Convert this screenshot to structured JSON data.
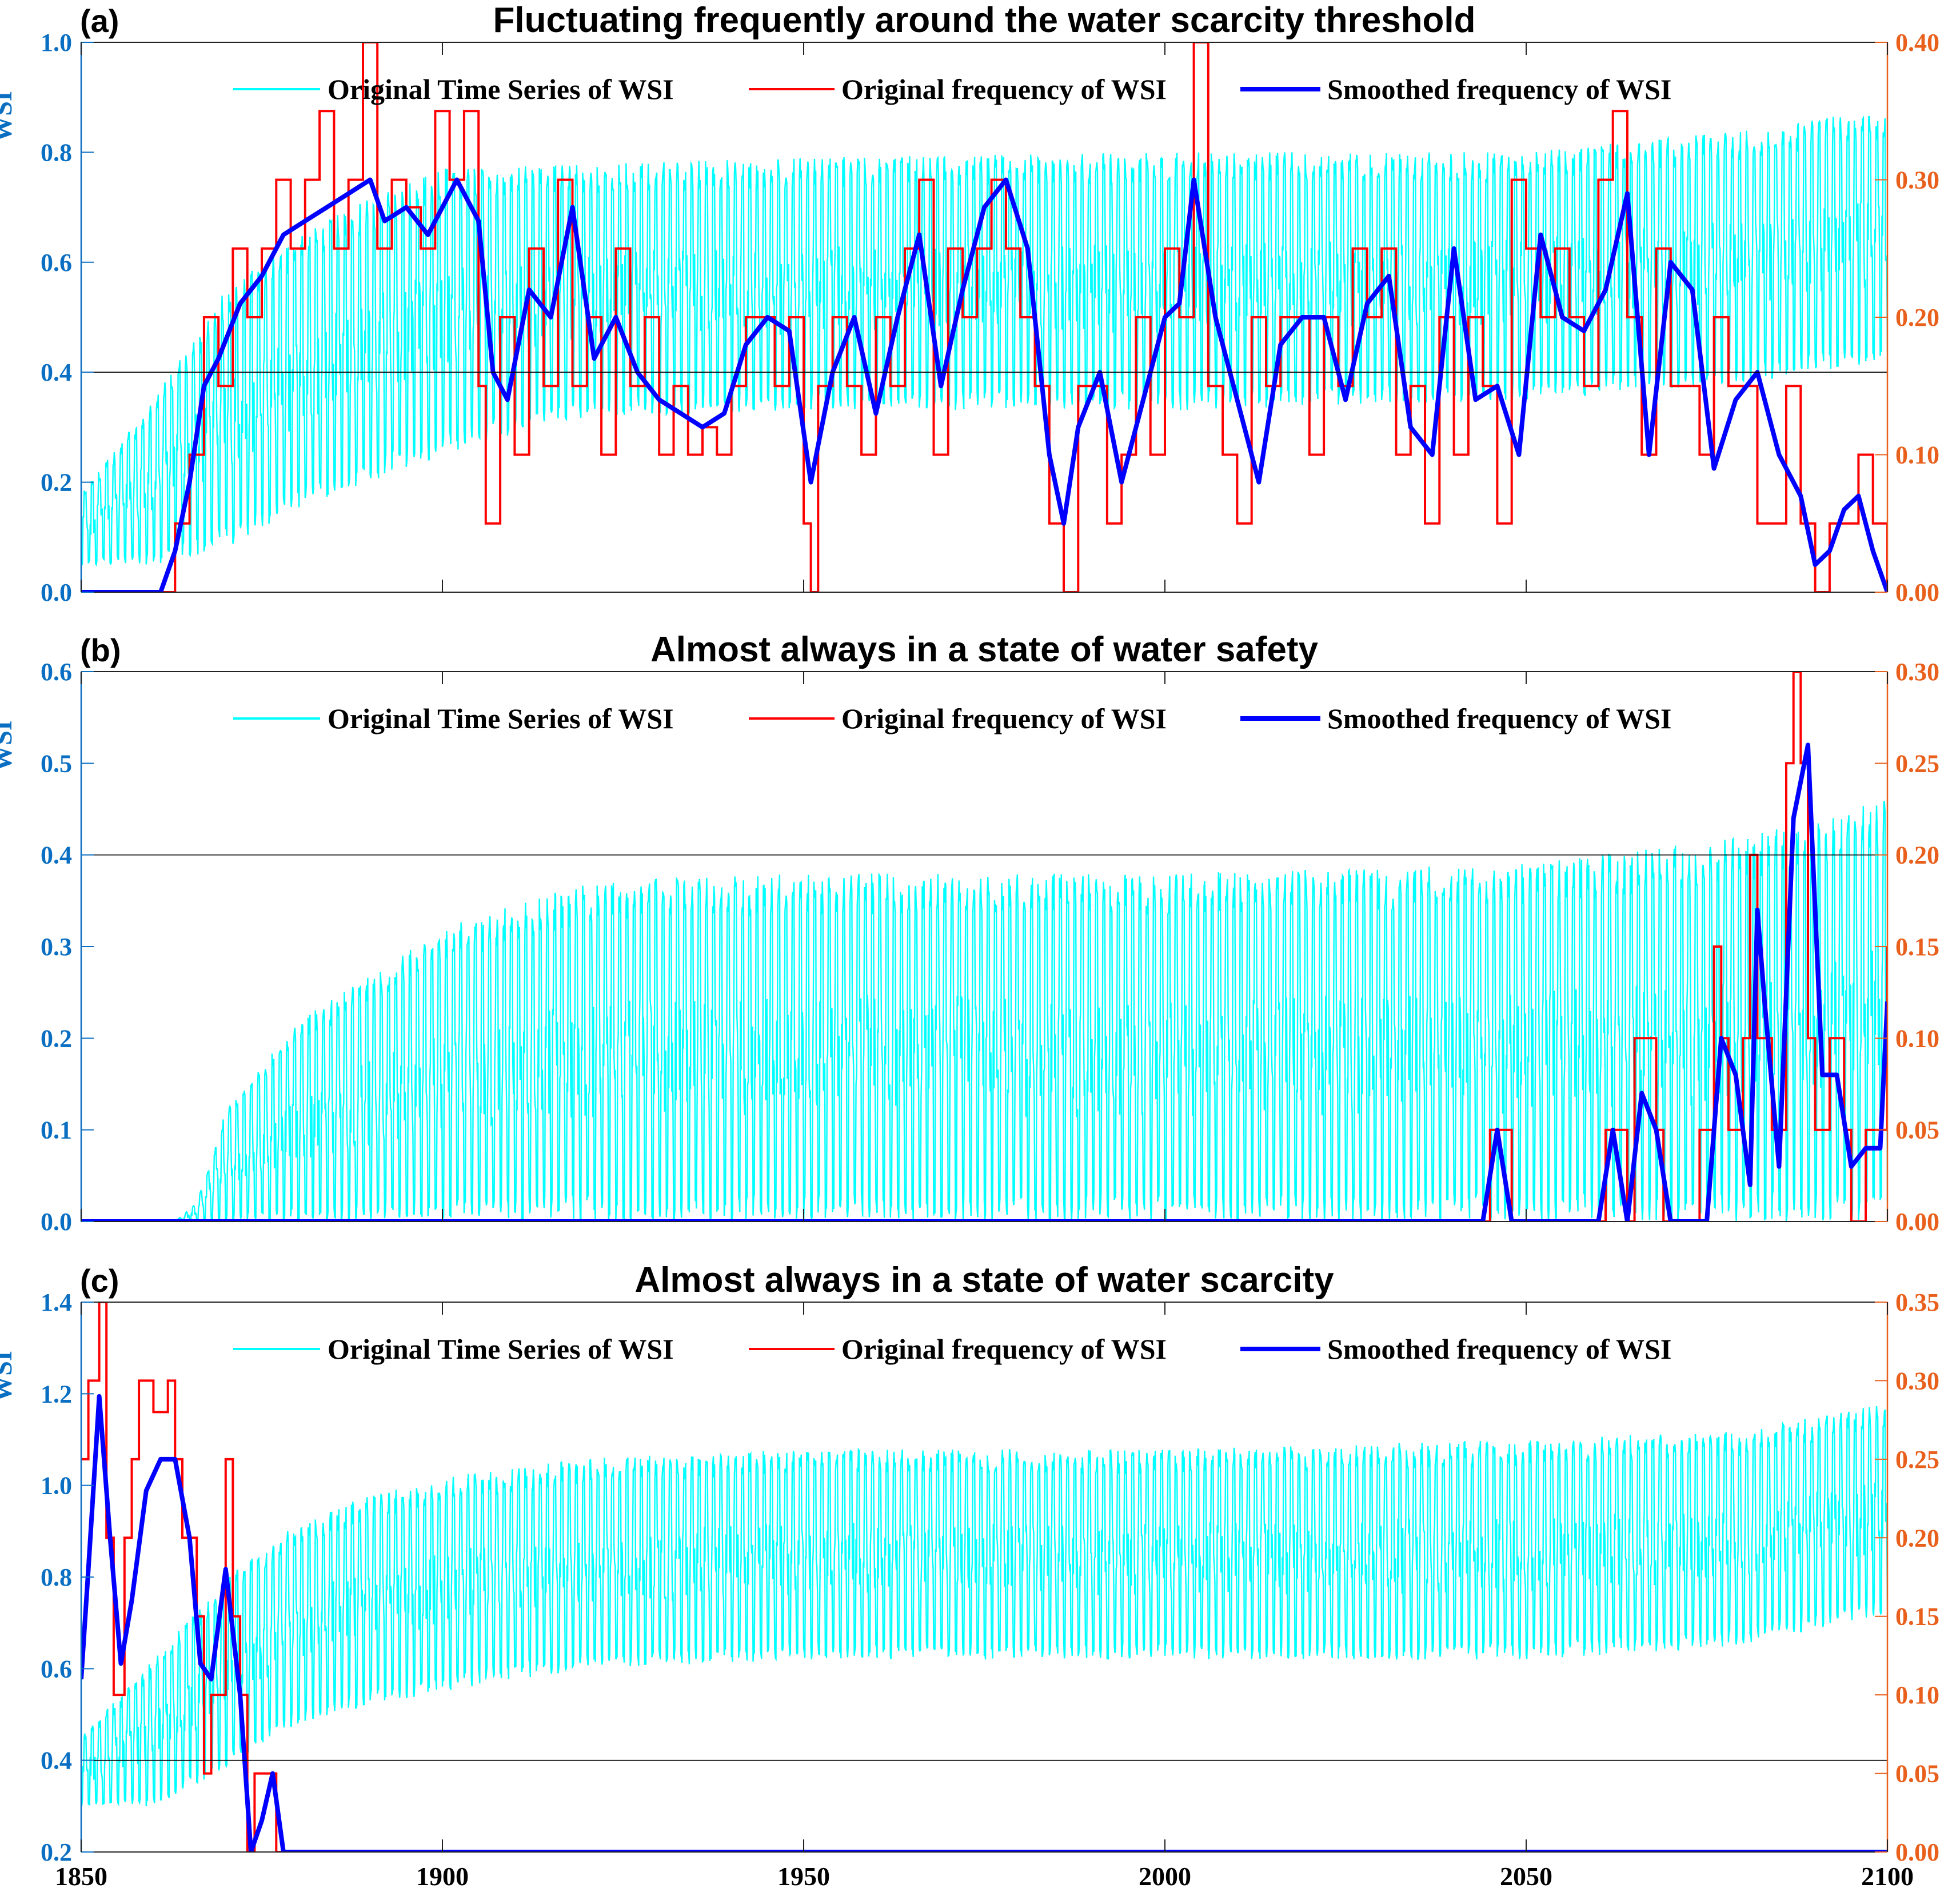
{
  "figure": {
    "x_ticks": [
      "1850",
      "1900",
      "1950",
      "2000",
      "2050",
      "2100"
    ],
    "legend": {
      "wsi_label": "Original Time Series of WSI",
      "orig_freq_label": "Original frequency of WSI",
      "smooth_freq_label": "Smoothed frequency of WSI"
    },
    "colors": {
      "wsi": "#00ffff",
      "orig_freq": "#ff0000",
      "smooth_freq": "#0000ff",
      "left_axis": "#0a6fc2",
      "right_axis": "#e8601c"
    }
  },
  "chart_data": [
    {
      "type": "line",
      "panel_label": "(a)",
      "title": "Fluctuating frequently around the water scarcity threshold",
      "ylabel": "WSI",
      "xlim": [
        1850,
        2100
      ],
      "ylim": [
        0,
        1.0
      ],
      "y2lim": [
        0,
        0.4
      ],
      "y_ticks": [
        "0.0",
        "0.2",
        "0.4",
        "0.6",
        "0.8",
        "1.0"
      ],
      "y2_ticks": [
        "0.00",
        "0.10",
        "0.20",
        "0.30",
        "0.40"
      ],
      "threshold": 0.4,
      "wsi_envelope": {
        "x": [
          1850,
          1860,
          1870,
          1880,
          1890,
          1900,
          1920,
          1950,
          2000,
          2050,
          2080,
          2100
        ],
        "low": [
          0.05,
          0.05,
          0.08,
          0.15,
          0.2,
          0.25,
          0.32,
          0.33,
          0.33,
          0.35,
          0.38,
          0.42
        ],
        "high": [
          0.18,
          0.35,
          0.55,
          0.65,
          0.72,
          0.77,
          0.78,
          0.79,
          0.8,
          0.8,
          0.84,
          0.88
        ]
      },
      "smoothed_frequency": {
        "x": [
          1850,
          1861,
          1863,
          1865,
          1867,
          1869,
          1872,
          1875,
          1878,
          1881,
          1884,
          1887,
          1890,
          1892,
          1895,
          1898,
          1902,
          1905,
          1907,
          1909,
          1912,
          1915,
          1918,
          1921,
          1924,
          1927,
          1930,
          1933,
          1936,
          1939,
          1942,
          1945,
          1948,
          1951,
          1954,
          1957,
          1960,
          1963,
          1966,
          1969,
          1972,
          1975,
          1978,
          1981,
          1984,
          1986,
          1988,
          1991,
          1994,
          1997,
          2000,
          2002,
          2004,
          2007,
          2010,
          2013,
          2016,
          2019,
          2022,
          2025,
          2028,
          2031,
          2034,
          2037,
          2040,
          2043,
          2046,
          2049,
          2052,
          2055,
          2058,
          2061,
          2064,
          2067,
          2070,
          2073,
          2076,
          2079,
          2082,
          2085,
          2088,
          2090,
          2092,
          2094,
          2096,
          2098,
          2100
        ],
        "y": [
          0,
          0,
          0.03,
          0.08,
          0.15,
          0.17,
          0.21,
          0.23,
          0.26,
          0.27,
          0.28,
          0.29,
          0.3,
          0.27,
          0.28,
          0.26,
          0.3,
          0.27,
          0.16,
          0.14,
          0.22,
          0.2,
          0.28,
          0.17,
          0.2,
          0.16,
          0.14,
          0.13,
          0.12,
          0.13,
          0.18,
          0.2,
          0.19,
          0.08,
          0.16,
          0.2,
          0.13,
          0.2,
          0.26,
          0.15,
          0.22,
          0.28,
          0.3,
          0.25,
          0.1,
          0.05,
          0.12,
          0.16,
          0.08,
          0.14,
          0.2,
          0.21,
          0.3,
          0.2,
          0.14,
          0.08,
          0.18,
          0.2,
          0.2,
          0.14,
          0.21,
          0.23,
          0.12,
          0.1,
          0.25,
          0.14,
          0.15,
          0.1,
          0.26,
          0.2,
          0.19,
          0.22,
          0.29,
          0.1,
          0.24,
          0.22,
          0.09,
          0.14,
          0.16,
          0.1,
          0.07,
          0.02,
          0.03,
          0.06,
          0.07,
          0.03,
          0
        ]
      },
      "original_frequency": {
        "x": [
          1850,
          1862,
          1863,
          1865,
          1867,
          1869,
          1871,
          1873,
          1875,
          1877,
          1879,
          1881,
          1883,
          1885,
          1887,
          1889,
          1891,
          1893,
          1895,
          1897,
          1899,
          1901,
          1903,
          1905,
          1906,
          1908,
          1910,
          1912,
          1914,
          1916,
          1918,
          1920,
          1922,
          1924,
          1926,
          1928,
          1930,
          1932,
          1934,
          1936,
          1938,
          1940,
          1942,
          1944,
          1946,
          1948,
          1950,
          1951,
          1952,
          1954,
          1956,
          1958,
          1960,
          1962,
          1964,
          1966,
          1968,
          1970,
          1972,
          1974,
          1976,
          1978,
          1980,
          1982,
          1984,
          1986,
          1988,
          1990,
          1992,
          1994,
          1996,
          1998,
          2000,
          2002,
          2004,
          2006,
          2008,
          2010,
          2012,
          2014,
          2016,
          2018,
          2020,
          2022,
          2024,
          2026,
          2028,
          2030,
          2032,
          2034,
          2036,
          2038,
          2040,
          2042,
          2044,
          2046,
          2048,
          2050,
          2052,
          2054,
          2056,
          2058,
          2060,
          2062,
          2064,
          2066,
          2068,
          2070,
          2072,
          2074,
          2076,
          2078,
          2080,
          2082,
          2084,
          2086,
          2088,
          2090,
          2092,
          2094,
          2096,
          2098,
          2100
        ],
        "y": [
          0,
          0,
          0.05,
          0.1,
          0.2,
          0.15,
          0.25,
          0.2,
          0.25,
          0.3,
          0.25,
          0.3,
          0.35,
          0.25,
          0.3,
          0.4,
          0.25,
          0.3,
          0.28,
          0.25,
          0.35,
          0.3,
          0.35,
          0.15,
          0.05,
          0.2,
          0.1,
          0.25,
          0.15,
          0.3,
          0.15,
          0.2,
          0.1,
          0.25,
          0.15,
          0.2,
          0.1,
          0.15,
          0.1,
          0.12,
          0.1,
          0.15,
          0.2,
          0.2,
          0.15,
          0.2,
          0.05,
          0,
          0.15,
          0.2,
          0.15,
          0.1,
          0.2,
          0.15,
          0.25,
          0.3,
          0.1,
          0.25,
          0.2,
          0.25,
          0.3,
          0.25,
          0.2,
          0.15,
          0.05,
          0,
          0.15,
          0.15,
          0.05,
          0.1,
          0.2,
          0.1,
          0.25,
          0.2,
          0.4,
          0.15,
          0.1,
          0.05,
          0.2,
          0.15,
          0.2,
          0.2,
          0.1,
          0.2,
          0.15,
          0.25,
          0.2,
          0.25,
          0.1,
          0.15,
          0.05,
          0.2,
          0.1,
          0.2,
          0.15,
          0.05,
          0.3,
          0.25,
          0.2,
          0.25,
          0.2,
          0.15,
          0.3,
          0.35,
          0.2,
          0.1,
          0.25,
          0.15,
          0.15,
          0.1,
          0.2,
          0.15,
          0.15,
          0.05,
          0.05,
          0.15,
          0.05,
          0,
          0.05,
          0.05,
          0.1,
          0.05,
          0
        ]
      }
    },
    {
      "type": "line",
      "panel_label": "(b)",
      "title": "Almost always in a state of water safety",
      "ylabel": "WSI",
      "xlim": [
        1850,
        2100
      ],
      "ylim": [
        0,
        0.6
      ],
      "y2lim": [
        0,
        0.3
      ],
      "y_ticks": [
        "0.0",
        "0.1",
        "0.2",
        "0.3",
        "0.4",
        "0.5",
        "0.6"
      ],
      "y2_ticks": [
        "0.00",
        "0.05",
        "0.10",
        "0.15",
        "0.20",
        "0.25",
        "0.30"
      ],
      "threshold": 0.4,
      "wsi_envelope": {
        "x": [
          1850,
          1863,
          1866,
          1870,
          1880,
          1890,
          1900,
          1920,
          1950,
          2000,
          2050,
          2080,
          2100
        ],
        "low": [
          0,
          0,
          0,
          0,
          0,
          0,
          0,
          0,
          0,
          0,
          0,
          0,
          0
        ],
        "high": [
          0,
          0,
          0.02,
          0.12,
          0.22,
          0.27,
          0.32,
          0.37,
          0.38,
          0.38,
          0.39,
          0.42,
          0.46
        ]
      },
      "smoothed_frequency": {
        "x": [
          1850,
          2044,
          2046,
          2048,
          2060,
          2062,
          2064,
          2066,
          2068,
          2070,
          2075,
          2077,
          2079,
          2081,
          2082,
          2083,
          2085,
          2087,
          2089,
          2091,
          2093,
          2095,
          2097,
          2099,
          2100
        ],
        "y": [
          0,
          0,
          0.05,
          0,
          0,
          0.05,
          0,
          0.07,
          0.05,
          0,
          0,
          0.1,
          0.08,
          0.02,
          0.17,
          0.12,
          0.03,
          0.22,
          0.26,
          0.08,
          0.08,
          0.03,
          0.04,
          0.04,
          0.12
        ]
      },
      "original_frequency": {
        "x": [
          1850,
          2044,
          2045,
          2047,
          2048,
          2060,
          2061,
          2063,
          2064,
          2065,
          2068,
          2069,
          2070,
          2074,
          2076,
          2077,
          2078,
          2080,
          2081,
          2082,
          2084,
          2086,
          2087,
          2088,
          2089,
          2090,
          2092,
          2094,
          2095,
          2097,
          2099,
          2100
        ],
        "y": [
          0,
          0,
          0.05,
          0.05,
          0,
          0,
          0.05,
          0.05,
          0,
          0.1,
          0.05,
          0,
          0,
          0.05,
          0.15,
          0.1,
          0.05,
          0.1,
          0.2,
          0.1,
          0.05,
          0.25,
          0.3,
          0.25,
          0.1,
          0.05,
          0.1,
          0.05,
          0,
          0.05,
          0.05,
          0.15
        ]
      }
    },
    {
      "type": "line",
      "panel_label": "(c)",
      "title": "Almost always in a state of water scarcity",
      "ylabel": "WSI",
      "xlim": [
        1850,
        2100
      ],
      "ylim": [
        0.2,
        1.4
      ],
      "y2lim": [
        0,
        0.35
      ],
      "y_ticks": [
        "0.2",
        "0.4",
        "0.6",
        "0.8",
        "1.0",
        "1.2",
        "1.4"
      ],
      "y2_ticks": [
        "0.00",
        "0.05",
        "0.10",
        "0.15",
        "0.20",
        "0.25",
        "0.30",
        "0.35"
      ],
      "threshold": 0.4,
      "wsi_envelope": {
        "x": [
          1850,
          1860,
          1870,
          1880,
          1890,
          1900,
          1920,
          1950,
          2000,
          2050,
          2080,
          2100
        ],
        "low": [
          0.3,
          0.3,
          0.38,
          0.48,
          0.52,
          0.55,
          0.6,
          0.62,
          0.62,
          0.62,
          0.65,
          0.72
        ],
        "high": [
          0.45,
          0.62,
          0.8,
          0.92,
          0.98,
          1.02,
          1.06,
          1.08,
          1.08,
          1.1,
          1.12,
          1.18
        ]
      },
      "smoothed_frequency": {
        "x": [
          1850,
          1851,
          1852.5,
          1854,
          1855.5,
          1857,
          1859,
          1861,
          1863,
          1865,
          1866.5,
          1868,
          1870,
          1872,
          1873.5,
          1875,
          1876.5,
          1878,
          2100
        ],
        "y": [
          0.11,
          0.18,
          0.29,
          0.2,
          0.12,
          0.16,
          0.23,
          0.25,
          0.25,
          0.2,
          0.12,
          0.11,
          0.18,
          0.1,
          0,
          0.02,
          0.05,
          0,
          0
        ]
      },
      "original_frequency": {
        "x": [
          1850,
          1851,
          1852.5,
          1853.5,
          1854.5,
          1856,
          1857,
          1858,
          1860,
          1862,
          1863,
          1864,
          1866,
          1867,
          1868,
          1870,
          1871,
          1872,
          1873,
          1874,
          1876,
          1877,
          1878,
          2100
        ],
        "y": [
          0.25,
          0.3,
          0.35,
          0.2,
          0.1,
          0.2,
          0.25,
          0.3,
          0.28,
          0.3,
          0.25,
          0.2,
          0.15,
          0.05,
          0.1,
          0.25,
          0.15,
          0.1,
          0,
          0.05,
          0.05,
          0,
          0,
          0
        ]
      }
    }
  ]
}
